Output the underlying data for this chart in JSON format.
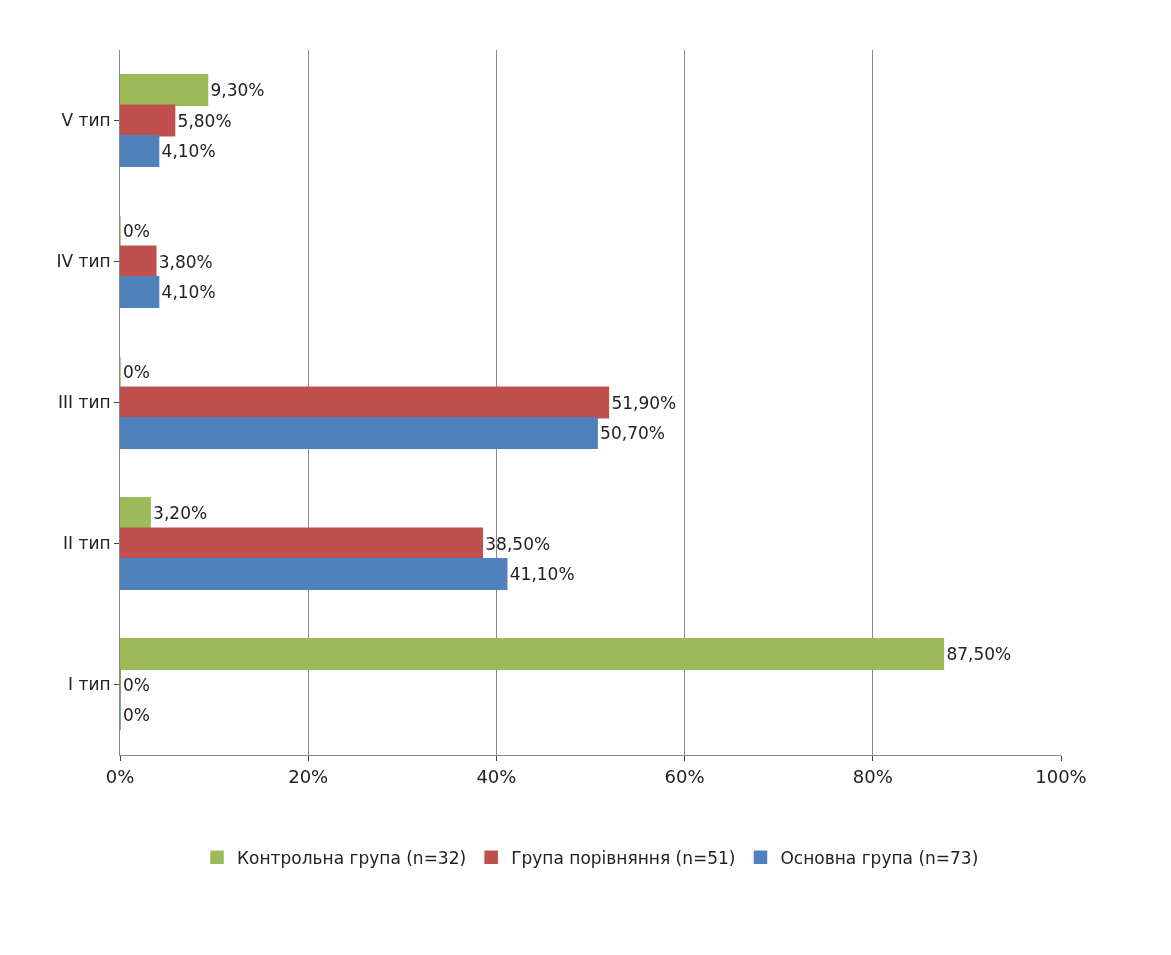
{
  "chart_data": {
    "type": "bar",
    "orientation": "horizontal",
    "categories": [
      "V тип",
      "IV тип",
      "III тип",
      "II тип",
      "I тип"
    ],
    "series": [
      {
        "name": "Контрольна група (n=32)",
        "color": "#9bbb59",
        "values": [
          9.3,
          0,
          0,
          3.2,
          87.5
        ],
        "value_labels": [
          "9,30%",
          "0%",
          "0%",
          "3,20%",
          "87,50%"
        ]
      },
      {
        "name": "Група порівняння (n=51)",
        "color": "#c0504d",
        "values": [
          5.8,
          3.8,
          51.9,
          38.5,
          0
        ],
        "value_labels": [
          "5,80%",
          "3,80%",
          "51,90%",
          "38,50%",
          "0%"
        ]
      },
      {
        "name": "Основна група (n=73)",
        "color": "#4f81bd",
        "values": [
          4.1,
          4.1,
          50.7,
          41.1,
          0
        ],
        "value_labels": [
          "4,10%",
          "4,10%",
          "50,70%",
          "41,10%",
          "0%"
        ]
      }
    ],
    "xlim": [
      0,
      100
    ],
    "xticks": [
      {
        "value": 0,
        "label": "0%"
      },
      {
        "value": 20,
        "label": "20%"
      },
      {
        "value": 40,
        "label": "40%"
      },
      {
        "value": 60,
        "label": "60%"
      },
      {
        "value": 80,
        "label": "80%"
      },
      {
        "value": 100,
        "label": "100%"
      }
    ],
    "grid": "x",
    "legend": "bottom"
  }
}
